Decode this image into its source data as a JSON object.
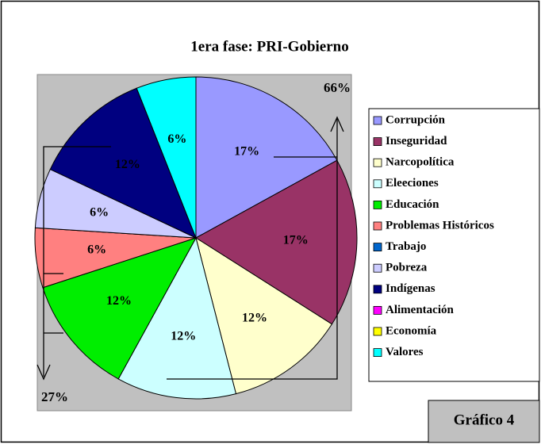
{
  "chart_data": {
    "type": "pie",
    "title": "1era fase: PRI-Gobierno",
    "categories": [
      "Corrupción",
      "Inseguridad",
      "Narcopolítica",
      "Eleeciones",
      "Educación",
      "Problemas Históricos",
      "Trabajo",
      "Pobreza",
      "Indígenas",
      "Alimentación",
      "Economía",
      "Valores"
    ],
    "values": [
      17,
      17,
      12,
      12,
      12,
      6,
      0,
      6,
      12,
      0,
      0,
      6
    ],
    "value_labels": [
      "17%",
      "17%",
      "12%",
      "12%",
      "12%",
      "6%",
      null,
      "6%",
      "12%",
      null,
      null,
      "6%"
    ],
    "colors": [
      "#9999ff",
      "#993366",
      "#ffffcc",
      "#ccffff",
      "#00ee00",
      "#ff8080",
      "#0066cc",
      "#ccccff",
      "#000080",
      "#ff00ff",
      "#ffff00",
      "#00ffff"
    ],
    "legend": "right",
    "annotations": [
      "66%",
      "27%",
      "Gráfico 4"
    ]
  }
}
